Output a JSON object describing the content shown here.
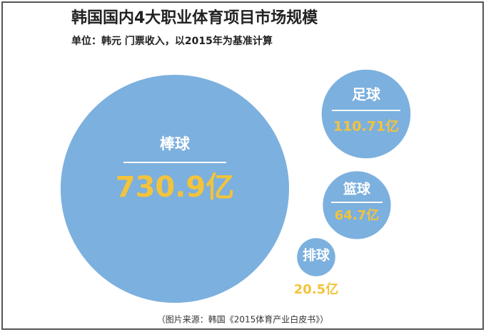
{
  "chart_data": {
    "type": "bubble",
    "title": "韩国国内4大职业体育项目市场规模",
    "subtitle": "单位：韩元  门票收入，以2015年为基准计算",
    "categories": [
      "棒球",
      "足球",
      "篮球",
      "排球"
    ],
    "values": [
      730.9,
      110.71,
      64.7,
      20.5
    ],
    "value_labels": [
      "730.9亿",
      "110.71亿",
      "64.7亿",
      "20.5亿"
    ],
    "color": "#7cb0de",
    "label_color": "#f3c33c",
    "source": "（图片来源：韩国《2015体育产业白皮书》）"
  }
}
